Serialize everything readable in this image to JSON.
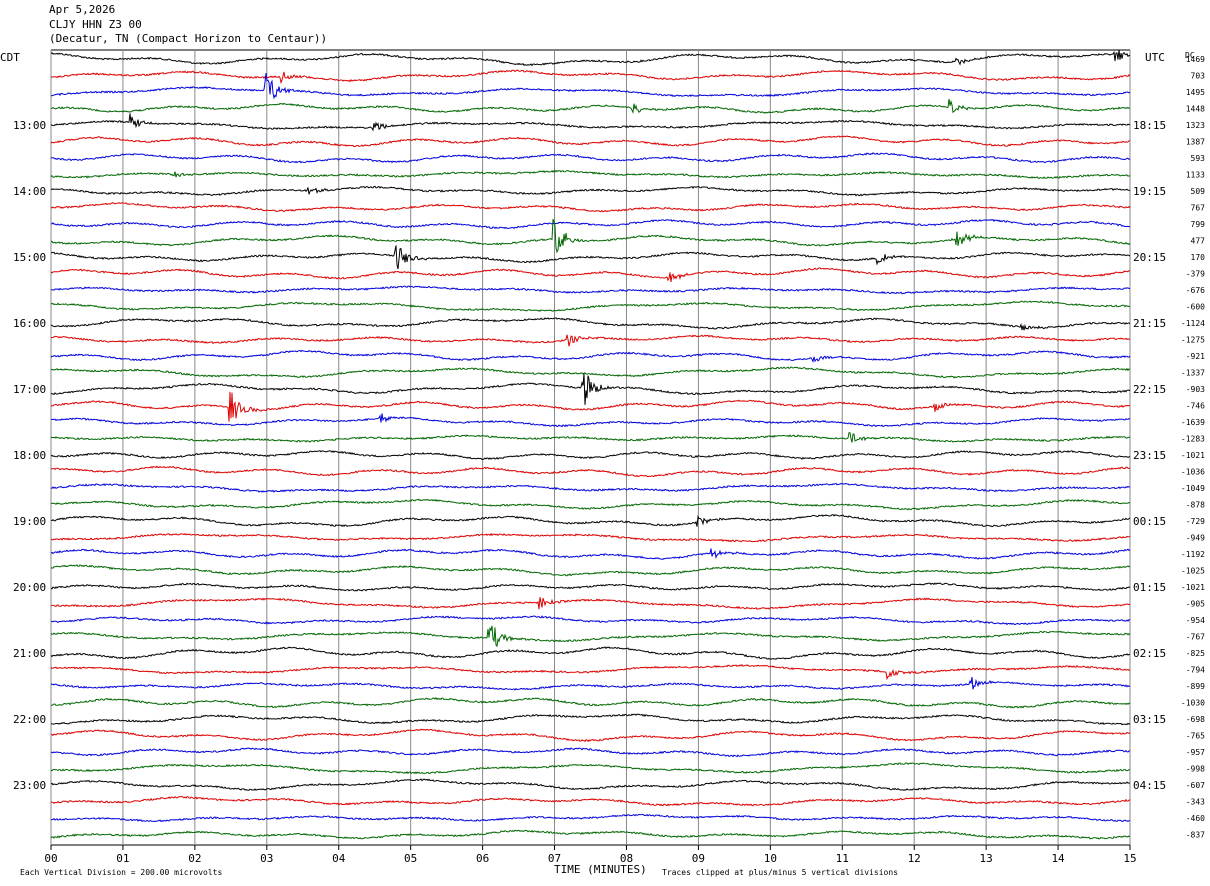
{
  "header": {
    "date": "Apr 5,2026",
    "station": "CLJY HHN Z3 00",
    "location": "(Decatur, TN (Compact Horizon to Centaur))"
  },
  "footer": {
    "scale_note": "Each Vertical Division =  200.00 microvolts",
    "clip_note": "Traces clipped at plus/minus 5 vertical divisions"
  },
  "colors": {
    "trace_cycle": [
      "#000000",
      "#dd0000",
      "#0000dd",
      "#006600"
    ],
    "grid": "#888888"
  },
  "chart_data": {
    "type": "line",
    "title": "",
    "xlabel": "TIME (MINUTES)",
    "xlim": [
      0,
      15
    ],
    "x_ticks": [
      "00",
      "01",
      "02",
      "03",
      "04",
      "05",
      "06",
      "07",
      "08",
      "09",
      "10",
      "11",
      "12",
      "13",
      "14",
      "15"
    ],
    "left_axis_label": "CDT",
    "right_axis_label": "UTC",
    "dc_label": "DC",
    "traces_per_hour": 4,
    "left_hour_labels": [
      "13:00",
      "14:00",
      "15:00",
      "16:00",
      "17:00",
      "18:00",
      "19:00",
      "20:00",
      "21:00",
      "22:00",
      "23:00"
    ],
    "right_hour_labels": [
      "18:15",
      "19:15",
      "20:15",
      "21:15",
      "22:15",
      "23:15",
      "00:15",
      "01:15",
      "02:15",
      "03:15",
      "04:15"
    ],
    "hour_label_first_trace": 4,
    "dc_offsets": [
      1469,
      703,
      1495,
      1448,
      1323,
      1387,
      593,
      1133,
      509,
      767,
      799,
      477,
      170,
      -379,
      -676,
      -600,
      -1124,
      -1275,
      -921,
      -1337,
      -903,
      -746,
      -1639,
      -1283,
      -1021,
      -1036,
      -1049,
      -878,
      -729,
      -949,
      -1192,
      -1025,
      -1021,
      -905,
      -954,
      -767,
      -825,
      -794,
      -899,
      -1030,
      -698,
      -765,
      -957,
      -998,
      -607,
      -343,
      -460,
      -837
    ],
    "events": [
      {
        "trace": 0,
        "minute": 14.8,
        "amp": 10
      },
      {
        "trace": 0,
        "minute": 12.6,
        "amp": 4
      },
      {
        "trace": 1,
        "minute": 3.2,
        "amp": 7
      },
      {
        "trace": 2,
        "minute": 3.0,
        "amp": 20
      },
      {
        "trace": 3,
        "minute": 8.1,
        "amp": 6
      },
      {
        "trace": 3,
        "minute": 12.5,
        "amp": 8
      },
      {
        "trace": 4,
        "minute": 1.1,
        "amp": 8
      },
      {
        "trace": 4,
        "minute": 4.5,
        "amp": 6
      },
      {
        "trace": 7,
        "minute": 1.7,
        "amp": 5
      },
      {
        "trace": 8,
        "minute": 3.6,
        "amp": 5
      },
      {
        "trace": 11,
        "minute": 7.0,
        "amp": 22
      },
      {
        "trace": 11,
        "minute": 12.6,
        "amp": 10
      },
      {
        "trace": 12,
        "minute": 4.8,
        "amp": 16
      },
      {
        "trace": 12,
        "minute": 11.5,
        "amp": 6
      },
      {
        "trace": 13,
        "minute": 8.6,
        "amp": 6
      },
      {
        "trace": 16,
        "minute": 13.5,
        "amp": 5
      },
      {
        "trace": 17,
        "minute": 7.2,
        "amp": 6
      },
      {
        "trace": 18,
        "minute": 10.6,
        "amp": 5
      },
      {
        "trace": 20,
        "minute": 7.4,
        "amp": 22
      },
      {
        "trace": 21,
        "minute": 2.5,
        "amp": 18
      },
      {
        "trace": 21,
        "minute": 12.3,
        "amp": 6
      },
      {
        "trace": 22,
        "minute": 4.6,
        "amp": 6
      },
      {
        "trace": 23,
        "minute": 11.1,
        "amp": 8
      },
      {
        "trace": 28,
        "minute": 9.0,
        "amp": 6
      },
      {
        "trace": 30,
        "minute": 9.2,
        "amp": 6
      },
      {
        "trace": 33,
        "minute": 6.8,
        "amp": 7
      },
      {
        "trace": 35,
        "minute": 6.1,
        "amp": 18
      },
      {
        "trace": 37,
        "minute": 11.6,
        "amp": 10
      },
      {
        "trace": 38,
        "minute": 12.8,
        "amp": 7
      }
    ]
  }
}
